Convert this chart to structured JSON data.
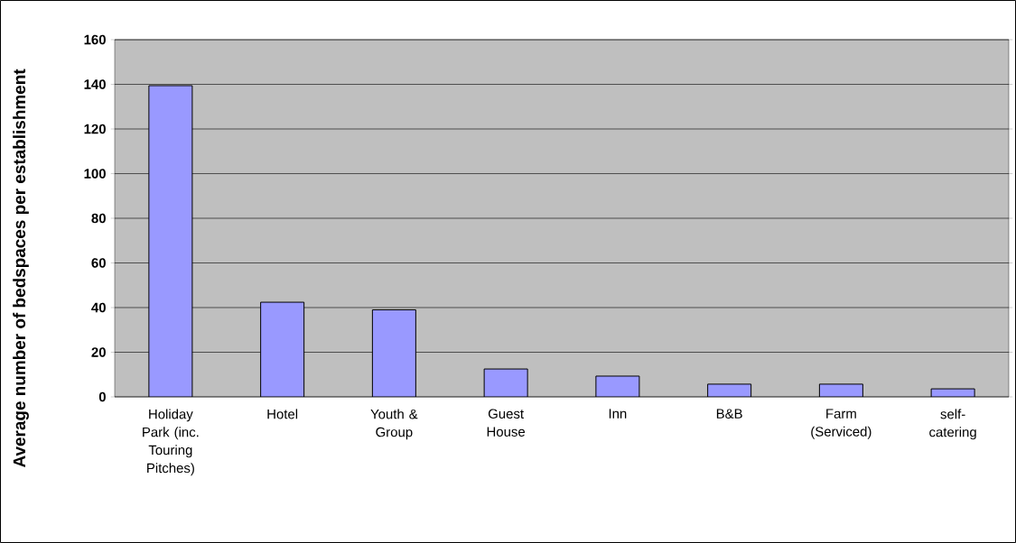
{
  "chart_data": {
    "type": "bar",
    "ylabel": "Average number of bedspaces per establishment",
    "categories": [
      "Holiday Park (inc. Touring Pitches)",
      "Hotel",
      "Youth & Group",
      "Guest House",
      "Inn",
      "B&B",
      "Farm (Serviced)",
      "self-catering"
    ],
    "values": [
      139.4,
      42.4,
      39,
      12.5,
      9.3,
      5.7,
      5.7,
      3.6
    ],
    "color": "#9999ff",
    "ylim": [
      0,
      160
    ],
    "yticks": [
      0,
      20,
      40,
      60,
      80,
      100,
      120,
      140,
      160
    ],
    "grid": "y"
  }
}
